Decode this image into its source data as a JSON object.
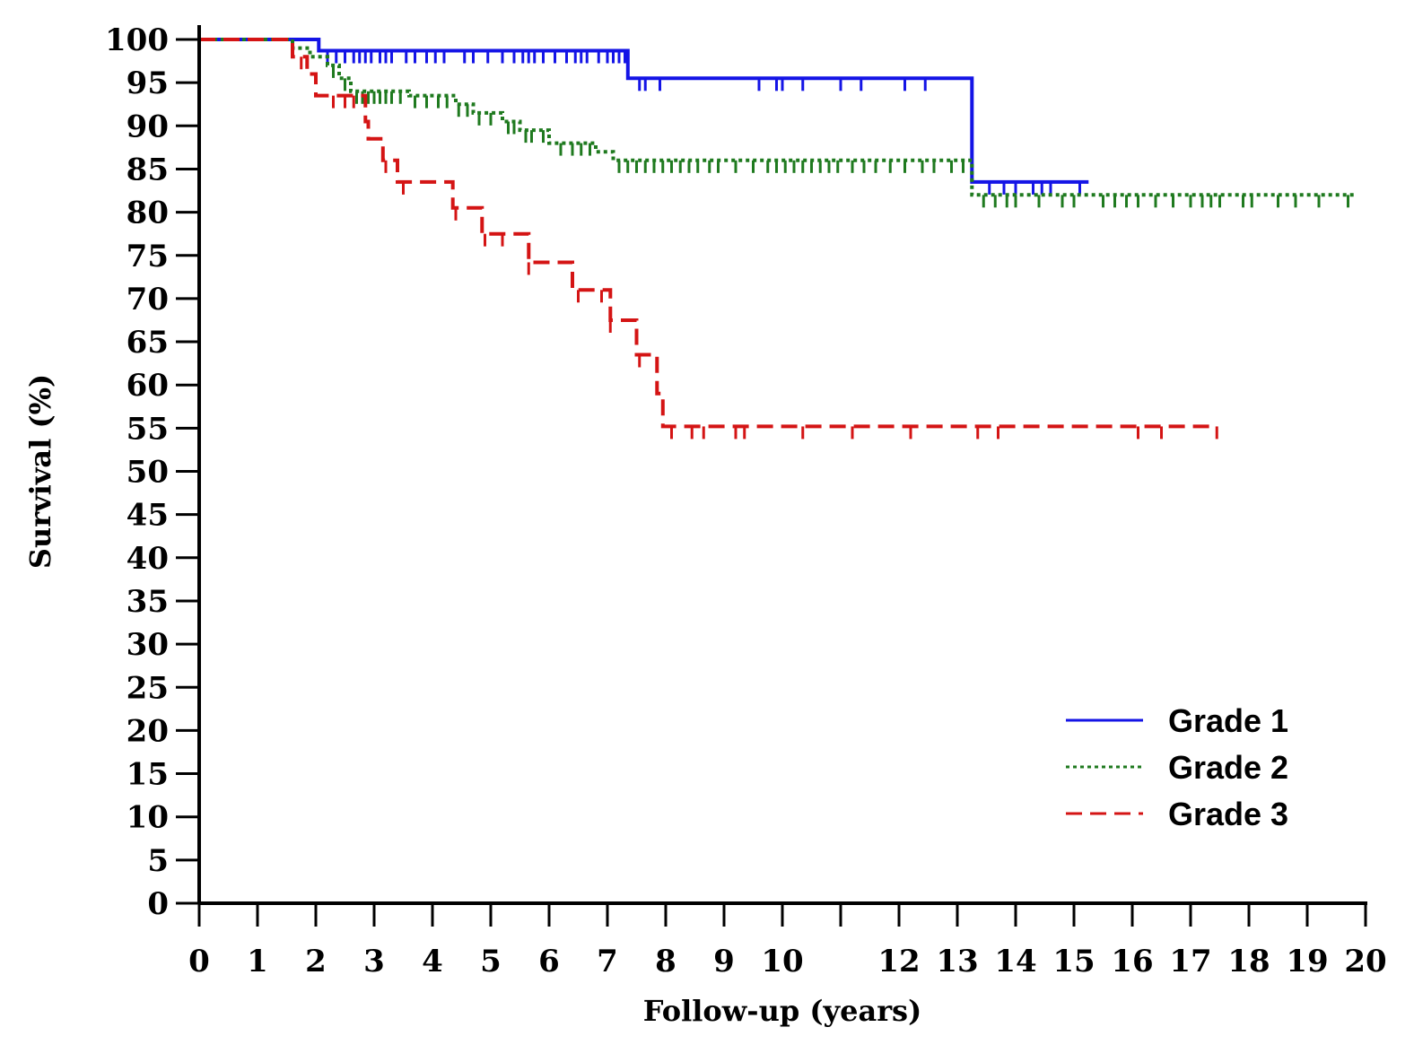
{
  "chart_data": {
    "type": "line",
    "step": true,
    "xlabel": "Follow-up (years)",
    "ylabel": "Survival (%)",
    "xlim": [
      0,
      20
    ],
    "ylim": [
      0,
      100
    ],
    "x_ticks": [
      0,
      1,
      2,
      3,
      4,
      5,
      6,
      7,
      8,
      9,
      10,
      11,
      12,
      13,
      14,
      15,
      16,
      17,
      18,
      19,
      20
    ],
    "x_tick_labels": [
      "0",
      "1",
      "2",
      "3",
      "4",
      "5",
      "6",
      "7",
      "8",
      "9",
      "10",
      "",
      "12",
      "13",
      "14",
      "15",
      "16",
      "17",
      "18",
      "19",
      "20"
    ],
    "y_ticks": [
      0,
      5,
      10,
      15,
      20,
      25,
      30,
      35,
      40,
      45,
      50,
      55,
      60,
      65,
      70,
      75,
      80,
      85,
      90,
      95,
      100
    ],
    "grid": false,
    "legend_position": "bottom-right",
    "series": [
      {
        "name": "Grade 1",
        "color": "#1414e6",
        "style": "solid",
        "points": [
          [
            0,
            100
          ],
          [
            2.05,
            100
          ],
          [
            2.05,
            98.7
          ],
          [
            7.35,
            98.7
          ],
          [
            7.35,
            95.5
          ],
          [
            13.25,
            95.5
          ],
          [
            13.25,
            83.5
          ],
          [
            15.25,
            83.5
          ]
        ],
        "censored": [
          2.2,
          2.35,
          2.5,
          2.65,
          2.75,
          2.85,
          2.95,
          3.1,
          3.2,
          3.3,
          3.55,
          3.7,
          3.9,
          4.05,
          4.2,
          4.55,
          4.7,
          4.95,
          5.2,
          5.4,
          5.55,
          5.65,
          5.75,
          5.9,
          6.1,
          6.3,
          6.45,
          6.55,
          6.65,
          6.85,
          7.0,
          7.1,
          7.2,
          7.3,
          7.55,
          7.65,
          7.9,
          9.6,
          9.9,
          10.0,
          10.35,
          11.0,
          11.35,
          12.1,
          12.45,
          13.55,
          13.8,
          14.0,
          14.3,
          14.45,
          14.6,
          15.1
        ]
      },
      {
        "name": "Grade 2",
        "color": "#1f7a1f",
        "style": "dotted",
        "points": [
          [
            0,
            100
          ],
          [
            1.6,
            100
          ],
          [
            1.6,
            99
          ],
          [
            1.9,
            99
          ],
          [
            1.9,
            98
          ],
          [
            2.2,
            98
          ],
          [
            2.2,
            97
          ],
          [
            2.4,
            97
          ],
          [
            2.4,
            95.5
          ],
          [
            2.6,
            95.5
          ],
          [
            2.6,
            94
          ],
          [
            3.6,
            94
          ],
          [
            3.6,
            93.5
          ],
          [
            4.4,
            93.5
          ],
          [
            4.4,
            92.5
          ],
          [
            4.7,
            92.5
          ],
          [
            4.7,
            91.5
          ],
          [
            5.2,
            91.5
          ],
          [
            5.2,
            90.5
          ],
          [
            5.5,
            90.5
          ],
          [
            5.5,
            89.5
          ],
          [
            6.0,
            89.5
          ],
          [
            6.0,
            88
          ],
          [
            6.8,
            88
          ],
          [
            6.8,
            87
          ],
          [
            7.1,
            87
          ],
          [
            7.1,
            86
          ],
          [
            13.25,
            86
          ],
          [
            13.25,
            82
          ],
          [
            19.8,
            82
          ]
        ],
        "censored": [
          2.3,
          2.5,
          2.7,
          2.8,
          2.9,
          3.0,
          3.1,
          3.2,
          3.3,
          3.45,
          3.7,
          3.9,
          4.1,
          4.25,
          4.45,
          4.6,
          4.8,
          5.0,
          5.3,
          5.4,
          5.6,
          5.7,
          5.9,
          6.2,
          6.4,
          6.55,
          6.7,
          7.2,
          7.35,
          7.5,
          7.65,
          7.8,
          7.95,
          8.1,
          8.25,
          8.4,
          8.55,
          8.75,
          8.9,
          9.2,
          9.5,
          9.75,
          9.9,
          10.05,
          10.2,
          10.35,
          10.5,
          10.65,
          10.8,
          10.95,
          11.2,
          11.4,
          11.6,
          11.85,
          12.1,
          12.4,
          12.6,
          12.9,
          13.1,
          13.45,
          13.65,
          13.85,
          14.0,
          14.4,
          14.8,
          15.0,
          15.5,
          15.7,
          15.9,
          16.1,
          16.4,
          16.7,
          17.0,
          17.2,
          17.35,
          17.5,
          17.9,
          18.05,
          18.5,
          18.8,
          19.2,
          19.7
        ]
      },
      {
        "name": "Grade 3",
        "color": "#d41414",
        "style": "dashed",
        "points": [
          [
            0,
            100
          ],
          [
            1.6,
            100
          ],
          [
            1.6,
            98
          ],
          [
            1.85,
            98
          ],
          [
            1.85,
            96
          ],
          [
            2.0,
            96
          ],
          [
            2.0,
            93.5
          ],
          [
            2.85,
            93.5
          ],
          [
            2.85,
            90.5
          ],
          [
            2.9,
            90.5
          ],
          [
            2.9,
            88.5
          ],
          [
            3.15,
            88.5
          ],
          [
            3.15,
            86
          ],
          [
            3.4,
            86
          ],
          [
            3.4,
            83.5
          ],
          [
            4.35,
            83.5
          ],
          [
            4.35,
            80.5
          ],
          [
            4.85,
            80.5
          ],
          [
            4.85,
            77.5
          ],
          [
            5.65,
            77.5
          ],
          [
            5.65,
            74.2
          ],
          [
            6.4,
            74.2
          ],
          [
            6.4,
            71
          ],
          [
            7.05,
            71
          ],
          [
            7.05,
            67.5
          ],
          [
            7.5,
            67.5
          ],
          [
            7.5,
            63.5
          ],
          [
            7.85,
            63.5
          ],
          [
            7.85,
            59
          ],
          [
            7.95,
            59
          ],
          [
            7.95,
            55.2
          ],
          [
            17.45,
            55.2
          ]
        ],
        "censored": [
          1.75,
          2.3,
          2.5,
          2.65,
          3.2,
          3.5,
          4.4,
          4.9,
          5.2,
          5.65,
          6.5,
          6.9,
          7.05,
          7.55,
          8.1,
          8.45,
          8.65,
          9.2,
          9.35,
          10.35,
          11.2,
          12.2,
          13.35,
          13.7,
          16.1,
          16.5,
          17.45
        ]
      }
    ]
  }
}
